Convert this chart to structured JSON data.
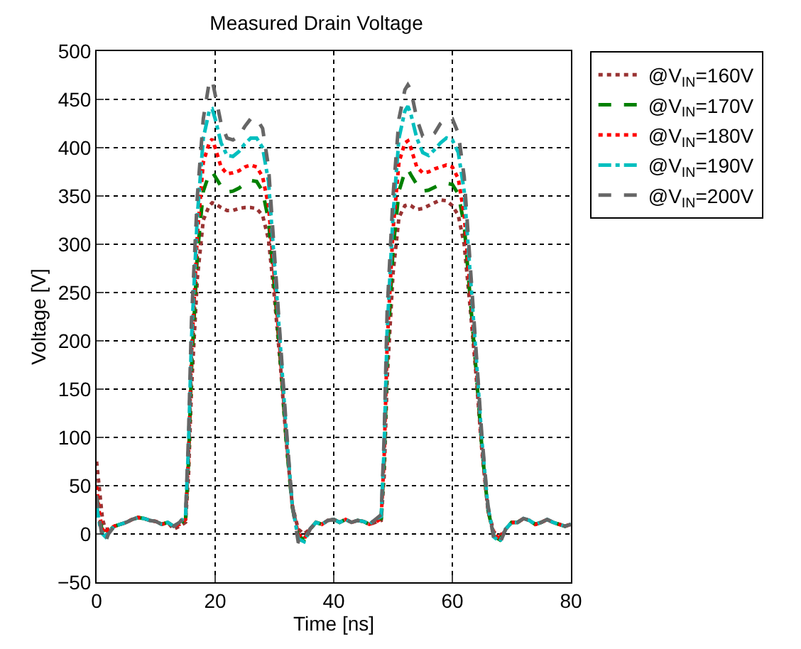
{
  "chart_data": {
    "type": "line",
    "title": "Measured Drain Voltage",
    "xlabel": "Time [ns]",
    "ylabel": "Voltage [V]",
    "x": [
      0,
      0.5,
      1,
      1.5,
      2,
      3,
      4,
      5,
      6,
      7,
      8,
      9,
      10,
      11,
      12,
      13,
      14,
      15,
      15.5,
      16,
      17,
      18,
      19,
      19.5,
      20,
      21,
      22,
      23,
      24,
      25,
      26,
      27,
      28,
      29,
      30,
      31,
      32,
      33,
      34,
      35,
      36,
      37,
      38,
      39,
      40,
      41,
      42,
      43,
      44,
      45,
      46,
      47,
      48,
      48.5,
      49,
      50,
      51,
      52,
      52.5,
      53,
      54,
      55,
      56,
      57,
      58,
      59,
      60,
      61,
      62,
      63,
      64,
      65,
      66,
      67,
      68,
      69,
      70,
      71,
      72,
      73,
      74,
      75,
      76,
      77,
      78,
      79,
      80
    ],
    "series": [
      {
        "name": "@V$_{IN}$=160V",
        "color": "#993333",
        "line_style": "dotted",
        "values": [
          75,
          45,
          15,
          5,
          5,
          8,
          10,
          12,
          15,
          17,
          16,
          14,
          13,
          10,
          12,
          5,
          8,
          12,
          60,
          150,
          265,
          325,
          340,
          343,
          342,
          338,
          335,
          335,
          337,
          338,
          338,
          337,
          330,
          305,
          245,
          175,
          95,
          30,
          5,
          0,
          5,
          12,
          10,
          14,
          15,
          12,
          15,
          12,
          14,
          13,
          10,
          12,
          14,
          60,
          160,
          270,
          328,
          340,
          341,
          340,
          336,
          337,
          340,
          343,
          346,
          345,
          340,
          330,
          300,
          235,
          165,
          85,
          25,
          2,
          -2,
          5,
          12,
          12,
          16,
          14,
          10,
          12,
          15,
          12,
          10,
          8,
          10
        ]
      },
      {
        "name": "@V$_{IN}$=170V",
        "color": "#008000",
        "line_style": "dashed",
        "values": [
          40,
          15,
          3,
          -2,
          3,
          8,
          10,
          12,
          15,
          17,
          16,
          14,
          13,
          10,
          12,
          8,
          10,
          15,
          75,
          170,
          290,
          355,
          373,
          375,
          370,
          360,
          354,
          355,
          358,
          363,
          366,
          365,
          355,
          325,
          255,
          180,
          95,
          28,
          -2,
          -6,
          5,
          12,
          10,
          14,
          15,
          12,
          15,
          12,
          14,
          13,
          10,
          12,
          16,
          75,
          180,
          295,
          355,
          375,
          378,
          372,
          362,
          355,
          356,
          359,
          362,
          363,
          362,
          352,
          320,
          245,
          170,
          88,
          25,
          -2,
          -6,
          5,
          12,
          12,
          16,
          14,
          10,
          12,
          15,
          12,
          10,
          8,
          10
        ]
      },
      {
        "name": "@V$_{IN}$=180V",
        "color": "#ff0000",
        "line_style": "dotted",
        "values": [
          50,
          20,
          5,
          0,
          5,
          8,
          10,
          12,
          15,
          17,
          16,
          14,
          13,
          10,
          12,
          8,
          10,
          15,
          80,
          185,
          310,
          385,
          405,
          409,
          400,
          380,
          373,
          374,
          376,
          380,
          382,
          380,
          370,
          340,
          265,
          185,
          100,
          30,
          0,
          -5,
          5,
          12,
          10,
          14,
          15,
          12,
          15,
          12,
          14,
          13,
          10,
          12,
          16,
          80,
          195,
          315,
          385,
          405,
          407,
          400,
          380,
          374,
          375,
          378,
          380,
          382,
          380,
          368,
          330,
          255,
          175,
          90,
          25,
          0,
          -5,
          5,
          12,
          12,
          16,
          14,
          10,
          12,
          15,
          12,
          10,
          8,
          10
        ]
      },
      {
        "name": "@V$_{IN}$=190V",
        "color": "#00bfbf",
        "line_style": "dashdot",
        "values": [
          30,
          10,
          0,
          -3,
          2,
          8,
          10,
          12,
          15,
          17,
          16,
          14,
          13,
          10,
          12,
          8,
          12,
          18,
          90,
          200,
          330,
          410,
          438,
          440,
          430,
          405,
          392,
          391,
          396,
          404,
          410,
          410,
          400,
          365,
          280,
          195,
          105,
          30,
          -5,
          -8,
          5,
          12,
          10,
          14,
          15,
          12,
          15,
          12,
          14,
          13,
          10,
          15,
          18,
          90,
          210,
          330,
          410,
          438,
          443,
          435,
          410,
          395,
          392,
          398,
          405,
          410,
          408,
          395,
          355,
          270,
          185,
          95,
          28,
          -3,
          -8,
          5,
          12,
          12,
          16,
          14,
          10,
          12,
          15,
          12,
          10,
          8,
          10
        ]
      },
      {
        "name": "@V$_{IN}$=200V",
        "color": "#666666",
        "line_style": "dashed",
        "values": [
          40,
          15,
          -5,
          -8,
          0,
          8,
          10,
          12,
          15,
          17,
          16,
          14,
          13,
          10,
          12,
          8,
          12,
          20,
          100,
          220,
          350,
          430,
          468,
          470,
          455,
          425,
          410,
          408,
          412,
          422,
          430,
          430,
          420,
          380,
          290,
          200,
          110,
          30,
          -8,
          -10,
          5,
          12,
          10,
          14,
          15,
          12,
          15,
          12,
          14,
          13,
          10,
          15,
          20,
          100,
          230,
          350,
          430,
          460,
          465,
          460,
          430,
          412,
          410,
          415,
          425,
          430,
          430,
          415,
          370,
          280,
          190,
          100,
          30,
          -5,
          -10,
          5,
          12,
          12,
          16,
          14,
          10,
          12,
          15,
          12,
          10,
          8,
          10
        ]
      }
    ],
    "xlim": [
      0,
      80
    ],
    "xticks": [
      0,
      20,
      40,
      60,
      80
    ],
    "ylim": [
      -50,
      500
    ],
    "yticks": [
      -50,
      0,
      50,
      100,
      150,
      200,
      250,
      300,
      350,
      400,
      450,
      500
    ],
    "grid": true,
    "legend": "top right",
    "marker": "none"
  }
}
